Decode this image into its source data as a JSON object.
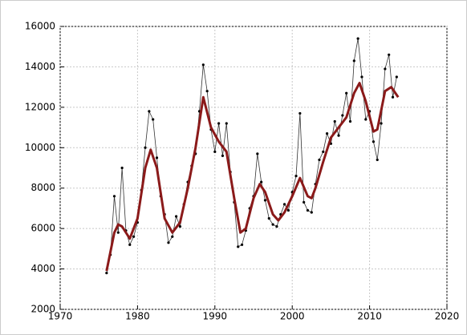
{
  "chart_data": {
    "type": "line",
    "xlim": [
      1970,
      2020
    ],
    "xticks": [
      1970,
      1980,
      1990,
      2000,
      2010,
      2020
    ],
    "ylim": [
      2000,
      16000
    ],
    "yticks": [
      2000,
      4000,
      6000,
      8000,
      10000,
      12000,
      14000,
      16000
    ],
    "grid": true,
    "series": [
      {
        "color": "#333333",
        "markers": true,
        "x": [
          1976.0,
          1976.5,
          1977.0,
          1977.5,
          1978.0,
          1978.5,
          1979.0,
          1979.5,
          1980.0,
          1980.5,
          1981.0,
          1981.5,
          1982.0,
          1982.5,
          1983.0,
          1983.5,
          1984.0,
          1984.5,
          1985.0,
          1985.5,
          1986.0,
          1986.5,
          1987.0,
          1987.5,
          1988.0,
          1988.5,
          1989.0,
          1989.5,
          1990.0,
          1990.5,
          1991.0,
          1991.5,
          1992.0,
          1992.5,
          1993.0,
          1993.5,
          1994.0,
          1994.5,
          1995.0,
          1995.5,
          1996.0,
          1996.5,
          1997.0,
          1997.5,
          1998.0,
          1998.5,
          1999.0,
          1999.5,
          2000.0,
          2000.5,
          2001.0,
          2001.5,
          2002.0,
          2002.5,
          2003.0,
          2003.5,
          2004.0,
          2004.5,
          2005.0,
          2005.5,
          2006.0,
          2006.5,
          2007.0,
          2007.5,
          2008.0,
          2008.5,
          2009.0,
          2009.5,
          2010.0,
          2010.5,
          2011.0,
          2011.5,
          2012.0,
          2012.5,
          2013.0,
          2013.5
        ],
        "values": [
          3800,
          4700,
          7600,
          5800,
          9000,
          5900,
          5200,
          5600,
          6300,
          7900,
          10000,
          11800,
          11400,
          9500,
          7600,
          6700,
          5300,
          5600,
          6600,
          6100,
          7200,
          8300,
          9100,
          9700,
          11800,
          14100,
          12800,
          10900,
          9800,
          11200,
          9600,
          11200,
          8800,
          7300,
          5100,
          5200,
          5900,
          7000,
          7600,
          9700,
          8300,
          7400,
          6500,
          6200,
          6100,
          6700,
          7200,
          6900,
          7800,
          8600,
          11700,
          7300,
          6900,
          6800,
          8200,
          9400,
          9800,
          10700,
          10200,
          11300,
          10600,
          11600,
          12700,
          11300,
          14300,
          15400,
          13500,
          11400,
          11800,
          10300,
          9400,
          11200,
          13900,
          14600,
          12500,
          13500
        ]
      },
      {
        "color": "#8b1a1a",
        "markers": false,
        "x": [
          1976,
          1977,
          1977.5,
          1978,
          1979,
          1980,
          1981,
          1981.7,
          1982.5,
          1983.5,
          1984.5,
          1985.5,
          1986.5,
          1987.5,
          1988.5,
          1989.5,
          1990.5,
          1991.5,
          1992.5,
          1993.3,
          1994,
          1995,
          1995.8,
          1996.5,
          1997.5,
          1998.2,
          1999,
          2000,
          2001,
          2002,
          2002.5,
          2003,
          2004,
          2005,
          2006,
          2007,
          2008,
          2008.7,
          2009.5,
          2010.5,
          2011,
          2012,
          2012.8,
          2013.7
        ],
        "values": [
          3900,
          5800,
          6200,
          6100,
          5500,
          6500,
          9000,
          9900,
          9000,
          6500,
          5800,
          6300,
          8000,
          10000,
          12500,
          11000,
          10300,
          9800,
          7500,
          5800,
          6000,
          7500,
          8200,
          7800,
          6700,
          6400,
          6800,
          7600,
          8500,
          7600,
          7500,
          8000,
          9300,
          10500,
          11000,
          11500,
          12700,
          13200,
          12300,
          10800,
          10900,
          12800,
          13000,
          12500
        ]
      }
    ]
  }
}
